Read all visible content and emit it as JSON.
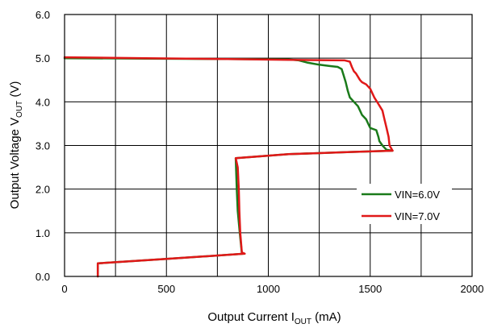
{
  "chart_data": {
    "type": "line",
    "xlabel": {
      "pre": "Output Current I",
      "sub": "OUT",
      "post": " (mA)"
    },
    "ylabel": {
      "pre": "Output Voltage V",
      "sub": "OUT",
      "post": " (V)"
    },
    "xlim": [
      0,
      2000
    ],
    "ylim": [
      0,
      6
    ],
    "x_ticks": [
      0,
      250,
      500,
      750,
      1000,
      1250,
      1500,
      1750,
      2000
    ],
    "x_tick_labels": [
      "0",
      "",
      "500",
      "",
      "1000",
      "",
      "1500",
      "",
      "2000"
    ],
    "y_ticks": [
      0,
      1,
      2,
      3,
      4,
      5,
      6
    ],
    "y_tick_labels": [
      "0.0",
      "1.0",
      "2.0",
      "3.0",
      "4.0",
      "5.0",
      "6.0"
    ],
    "grid": true,
    "legend_position": "lower-right",
    "series": [
      {
        "name": "VIN=6.0V",
        "color": "#1a7a1a",
        "points": [
          [
            0,
            5.0
          ],
          [
            400,
            4.99
          ],
          [
            800,
            4.98
          ],
          [
            1100,
            4.97
          ],
          [
            1150,
            4.95
          ],
          [
            1190,
            4.9
          ],
          [
            1250,
            4.85
          ],
          [
            1300,
            4.82
          ],
          [
            1340,
            4.8
          ],
          [
            1360,
            4.75
          ],
          [
            1370,
            4.6
          ],
          [
            1380,
            4.45
          ],
          [
            1390,
            4.25
          ],
          [
            1400,
            4.1
          ],
          [
            1420,
            4.0
          ],
          [
            1440,
            3.9
          ],
          [
            1450,
            3.8
          ],
          [
            1460,
            3.7
          ],
          [
            1480,
            3.6
          ],
          [
            1490,
            3.5
          ],
          [
            1500,
            3.4
          ],
          [
            1530,
            3.35
          ],
          [
            1540,
            3.2
          ],
          [
            1545,
            3.1
          ],
          [
            1560,
            3.0
          ],
          [
            1570,
            2.95
          ],
          [
            1580,
            2.9
          ],
          [
            1610,
            2.88
          ],
          [
            1400,
            2.85
          ],
          [
            1100,
            2.8
          ],
          [
            840,
            2.71
          ],
          [
            845,
            2.0
          ],
          [
            850,
            1.5
          ],
          [
            860,
            1.0
          ],
          [
            870,
            0.53
          ],
          [
            884,
            0.52
          ],
          [
            500,
            0.4
          ],
          [
            163,
            0.3
          ],
          [
            163,
            0.0
          ]
        ]
      },
      {
        "name": "VIN=7.0V",
        "color": "#e01818",
        "points": [
          [
            0,
            5.02
          ],
          [
            400,
            5.0
          ],
          [
            800,
            4.98
          ],
          [
            1100,
            4.96
          ],
          [
            1375,
            4.95
          ],
          [
            1400,
            4.92
          ],
          [
            1410,
            4.8
          ],
          [
            1420,
            4.7
          ],
          [
            1430,
            4.65
          ],
          [
            1450,
            4.5
          ],
          [
            1460,
            4.45
          ],
          [
            1480,
            4.4
          ],
          [
            1500,
            4.3
          ],
          [
            1510,
            4.2
          ],
          [
            1520,
            4.1
          ],
          [
            1540,
            3.95
          ],
          [
            1560,
            3.8
          ],
          [
            1570,
            3.6
          ],
          [
            1580,
            3.4
          ],
          [
            1590,
            3.2
          ],
          [
            1595,
            3.0
          ],
          [
            1610,
            2.88
          ],
          [
            1400,
            2.85
          ],
          [
            1100,
            2.8
          ],
          [
            840,
            2.71
          ],
          [
            850,
            2.5
          ],
          [
            855,
            2.0
          ],
          [
            858,
            1.5
          ],
          [
            862,
            1.0
          ],
          [
            870,
            0.55
          ],
          [
            884,
            0.52
          ],
          [
            500,
            0.4
          ],
          [
            163,
            0.3
          ],
          [
            163,
            0.0
          ]
        ]
      }
    ]
  }
}
